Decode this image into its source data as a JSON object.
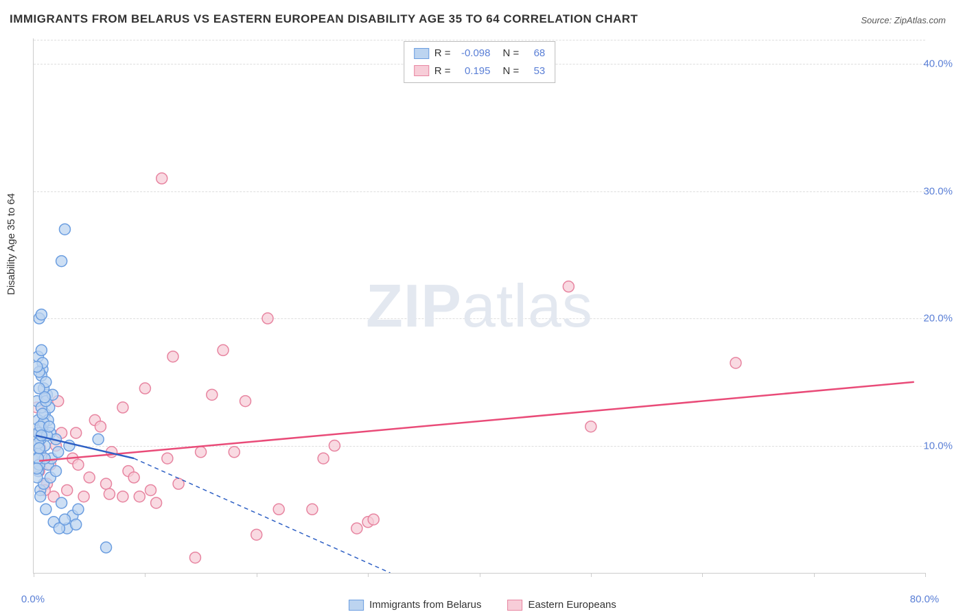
{
  "title": "IMMIGRANTS FROM BELARUS VS EASTERN EUROPEAN DISABILITY AGE 35 TO 64 CORRELATION CHART",
  "source_label": "Source: ZipAtlas.com",
  "ylabel": "Disability Age 35 to 64",
  "watermark": {
    "bold": "ZIP",
    "rest": "atlas"
  },
  "chart": {
    "type": "scatter+regression",
    "xlim": [
      0,
      80
    ],
    "ylim": [
      0,
      42
    ],
    "background_color": "#ffffff",
    "grid_color": "#dddddd",
    "axis_color": "#cccccc",
    "tick_label_color": "#5a7fd6",
    "ytick_positions": [
      10,
      20,
      30,
      40
    ],
    "ytick_labels": [
      "10.0%",
      "20.0%",
      "30.0%",
      "40.0%"
    ],
    "xtick_positions": [
      0,
      80
    ],
    "xtick_labels": [
      "0.0%",
      "80.0%"
    ],
    "xtick_marks": [
      0,
      10,
      20,
      30,
      40,
      50,
      60,
      70,
      80
    ],
    "marker_radius": 8,
    "marker_stroke_width": 1.5,
    "line_width": 2.5,
    "dash_pattern": "6 5"
  },
  "series": {
    "belarus": {
      "label": "Immigrants from Belarus",
      "fill": "#bcd4f0",
      "stroke": "#6a9de0",
      "line_color": "#2d5fc4",
      "r_value": "-0.098",
      "n_value": "68",
      "regression": {
        "x1": 0.2,
        "y1": 10.8,
        "x2": 9.0,
        "y2": 9.0
      },
      "extrapolation": {
        "x1": 9.0,
        "y1": 9.0,
        "x2": 32.0,
        "y2": 0.0
      },
      "points": [
        [
          0.3,
          10.0
        ],
        [
          0.5,
          11.0
        ],
        [
          0.4,
          8.0
        ],
        [
          0.6,
          9.5
        ],
        [
          0.8,
          16.0
        ],
        [
          0.4,
          17.0
        ],
        [
          1.0,
          12.5
        ],
        [
          1.2,
          14.0
        ],
        [
          0.3,
          13.5
        ],
        [
          0.7,
          15.5
        ],
        [
          1.5,
          11.0
        ],
        [
          2.0,
          10.5
        ],
        [
          0.6,
          6.5
        ],
        [
          0.9,
          7.0
        ],
        [
          1.1,
          5.0
        ],
        [
          1.8,
          4.0
        ],
        [
          2.5,
          5.5
        ],
        [
          3.0,
          3.5
        ],
        [
          3.5,
          4.5
        ],
        [
          4.0,
          5.0
        ],
        [
          1.3,
          8.5
        ],
        [
          1.6,
          9.0
        ],
        [
          0.5,
          20.0
        ],
        [
          0.7,
          20.3
        ],
        [
          2.8,
          27.0
        ],
        [
          2.5,
          24.5
        ],
        [
          0.4,
          12.0
        ],
        [
          0.8,
          11.5
        ],
        [
          1.0,
          10.0
        ],
        [
          1.4,
          13.0
        ],
        [
          0.3,
          9.0
        ],
        [
          0.5,
          8.5
        ],
        [
          0.6,
          10.5
        ],
        [
          0.9,
          14.5
        ],
        [
          1.1,
          15.0
        ],
        [
          1.3,
          12.0
        ],
        [
          0.4,
          11.0
        ],
        [
          0.7,
          13.0
        ],
        [
          0.5,
          14.5
        ],
        [
          0.8,
          16.5
        ],
        [
          1.0,
          9.0
        ],
        [
          0.3,
          7.5
        ],
        [
          0.6,
          6.0
        ],
        [
          1.5,
          7.5
        ],
        [
          2.0,
          8.0
        ],
        [
          1.2,
          10.8
        ],
        [
          0.4,
          9.0
        ],
        [
          0.9,
          11.8
        ],
        [
          1.1,
          13.5
        ],
        [
          1.7,
          14.0
        ],
        [
          0.5,
          15.8
        ],
        [
          0.3,
          16.2
        ],
        [
          0.7,
          17.5
        ],
        [
          2.2,
          9.5
        ],
        [
          3.2,
          10.0
        ],
        [
          5.8,
          10.5
        ],
        [
          0.4,
          10.2
        ],
        [
          0.6,
          11.5
        ],
        [
          0.8,
          12.5
        ],
        [
          1.0,
          13.8
        ],
        [
          1.4,
          11.5
        ],
        [
          0.5,
          9.8
        ],
        [
          0.3,
          8.2
        ],
        [
          0.7,
          10.8
        ],
        [
          6.5,
          2.0
        ],
        [
          3.8,
          3.8
        ],
        [
          2.3,
          3.5
        ],
        [
          2.8,
          4.2
        ]
      ]
    },
    "eastern": {
      "label": "Eastern Europeans",
      "fill": "#f7cdd8",
      "stroke": "#e784a0",
      "line_color": "#e94b78",
      "r_value": "0.195",
      "n_value": "53",
      "regression": {
        "x1": 0.5,
        "y1": 8.8,
        "x2": 79.0,
        "y2": 15.0
      },
      "points": [
        [
          0.3,
          13.0
        ],
        [
          0.5,
          8.0
        ],
        [
          0.8,
          9.0
        ],
        [
          1.2,
          7.0
        ],
        [
          1.5,
          8.5
        ],
        [
          2.0,
          10.0
        ],
        [
          2.5,
          11.0
        ],
        [
          3.0,
          6.5
        ],
        [
          3.5,
          9.0
        ],
        [
          4.0,
          8.5
        ],
        [
          5.0,
          7.5
        ],
        [
          5.5,
          12.0
        ],
        [
          6.0,
          11.5
        ],
        [
          6.5,
          7.0
        ],
        [
          7.0,
          9.5
        ],
        [
          8.0,
          6.0
        ],
        [
          8.5,
          8.0
        ],
        [
          9.0,
          7.5
        ],
        [
          10.0,
          14.5
        ],
        [
          10.5,
          6.5
        ],
        [
          11.0,
          5.5
        ],
        [
          12.0,
          9.0
        ],
        [
          12.5,
          17.0
        ],
        [
          13.0,
          7.0
        ],
        [
          8.0,
          13.0
        ],
        [
          11.5,
          31.0
        ],
        [
          15.0,
          9.5
        ],
        [
          16.0,
          14.0
        ],
        [
          17.0,
          17.5
        ],
        [
          19.0,
          13.5
        ],
        [
          18.0,
          9.5
        ],
        [
          20.0,
          3.0
        ],
        [
          22.0,
          5.0
        ],
        [
          21.0,
          20.0
        ],
        [
          26.0,
          9.0
        ],
        [
          25.0,
          5.0
        ],
        [
          27.0,
          10.0
        ],
        [
          29.0,
          3.5
        ],
        [
          30.0,
          4.0
        ],
        [
          30.5,
          4.2
        ],
        [
          50.0,
          11.5
        ],
        [
          48.0,
          22.5
        ],
        [
          63.0,
          16.5
        ],
        [
          14.5,
          1.2
        ],
        [
          4.5,
          6.0
        ],
        [
          6.8,
          6.2
        ],
        [
          9.5,
          6.0
        ],
        [
          3.8,
          11.0
        ],
        [
          2.2,
          13.5
        ],
        [
          1.0,
          6.5
        ],
        [
          1.8,
          6.0
        ],
        [
          0.6,
          9.8
        ],
        [
          0.4,
          11.0
        ]
      ]
    }
  },
  "stats_box": {
    "r_label": "R =",
    "n_label": "N ="
  },
  "legend_swatch_size": {
    "w": 22,
    "h": 16
  }
}
